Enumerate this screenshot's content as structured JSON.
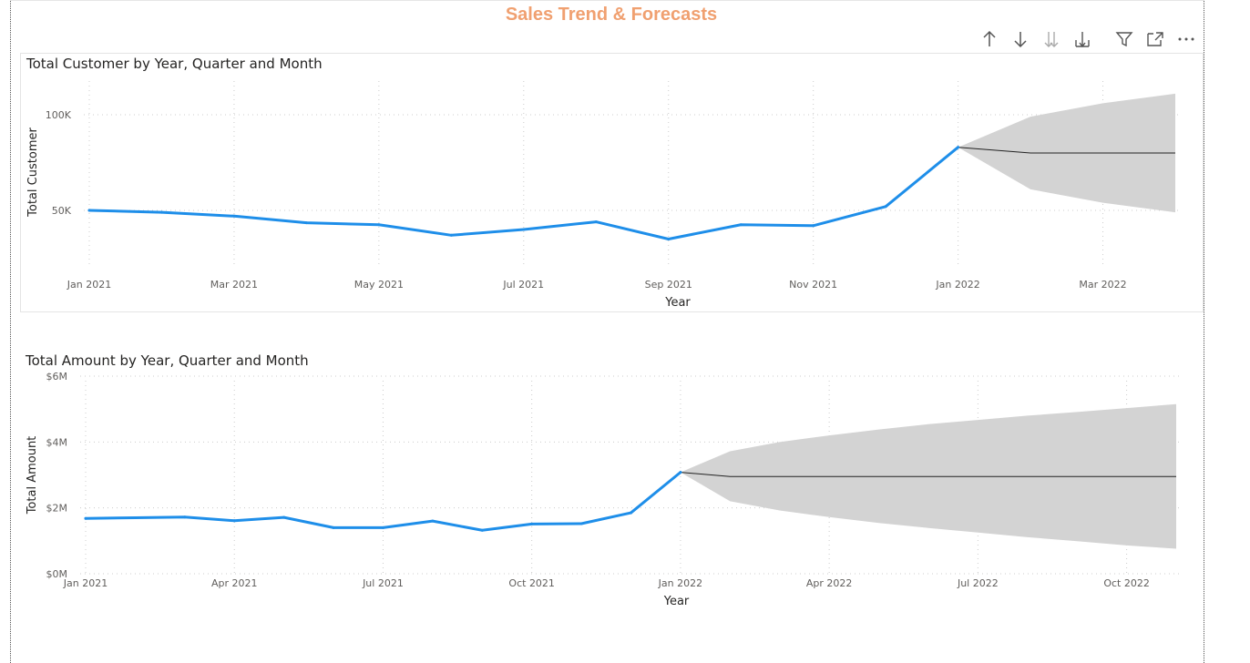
{
  "page": {
    "title": "Sales Trend & Forecasts"
  },
  "toolbar": {
    "icons": [
      "arrow-up-icon",
      "arrow-down-icon",
      "double-arrow-down-icon",
      "expand-hierarchy-icon",
      "filter-icon",
      "focus-mode-icon",
      "more-options-icon"
    ]
  },
  "colors": {
    "title": "#f0a070",
    "series": "#1e8ee9",
    "forecast": "#222222",
    "confidence_band": "#d3d3d3",
    "grid": "#cccccc"
  },
  "chart_data": [
    {
      "type": "line",
      "title": "Total Customer by Year, Quarter and Month",
      "xlabel": "Year",
      "ylabel": "Total Customer",
      "x_ticks": [
        "Jan 2021",
        "Mar 2021",
        "May 2021",
        "Jul 2021",
        "Sep 2021",
        "Nov 2021",
        "Jan 2022",
        "Mar 2022"
      ],
      "y_ticks": [
        "100K",
        "50K"
      ],
      "x_range": [
        "2021-01",
        "2022-04"
      ],
      "y_range": [
        20000,
        120000
      ],
      "grid": true,
      "series": [
        {
          "kind": "actual",
          "x": [
            "2021-01",
            "2021-02",
            "2021-03",
            "2021-04",
            "2021-05",
            "2021-06",
            "2021-07",
            "2021-08",
            "2021-09",
            "2021-10",
            "2021-11",
            "2021-12",
            "2022-01"
          ],
          "values": [
            50000,
            49000,
            47000,
            43500,
            42500,
            37000,
            40000,
            44000,
            35000,
            42500,
            42000,
            52000,
            83000
          ]
        },
        {
          "kind": "forecast",
          "x": [
            "2022-01",
            "2022-02",
            "2022-03",
            "2022-04"
          ],
          "values": [
            83000,
            80000,
            80000,
            80000
          ],
          "upper": [
            83000,
            99000,
            106000,
            111000
          ],
          "lower": [
            83000,
            61000,
            54000,
            49000
          ]
        }
      ]
    },
    {
      "type": "line",
      "title": "Total Amount by Year, Quarter and Month",
      "xlabel": "Year",
      "ylabel": "Total Amount",
      "x_ticks": [
        "Jan 2021",
        "Apr 2021",
        "Jul 2021",
        "Oct 2021",
        "Jan 2022",
        "Apr 2022",
        "Jul 2022",
        "Oct 2022"
      ],
      "y_ticks": [
        "$6M",
        "$4M",
        "$2M",
        "$0M"
      ],
      "x_range": [
        "2021-01",
        "2022-11"
      ],
      "y_range": [
        0,
        6000000
      ],
      "grid": true,
      "series": [
        {
          "kind": "actual",
          "x": [
            "2021-01",
            "2021-02",
            "2021-03",
            "2021-04",
            "2021-05",
            "2021-06",
            "2021-07",
            "2021-08",
            "2021-09",
            "2021-10",
            "2021-11",
            "2021-12",
            "2022-01"
          ],
          "values": [
            1680000,
            1700000,
            1720000,
            1610000,
            1710000,
            1400000,
            1400000,
            1600000,
            1320000,
            1510000,
            1520000,
            1850000,
            3080000
          ]
        },
        {
          "kind": "forecast",
          "x": [
            "2022-01",
            "2022-02",
            "2022-03",
            "2022-04",
            "2022-05",
            "2022-06",
            "2022-07",
            "2022-08",
            "2022-09",
            "2022-10",
            "2022-11"
          ],
          "values": [
            3080000,
            2950000,
            2950000,
            2950000,
            2950000,
            2950000,
            2950000,
            2950000,
            2950000,
            2950000,
            2950000
          ],
          "upper": [
            3080000,
            3720000,
            4000000,
            4200000,
            4380000,
            4540000,
            4670000,
            4800000,
            4910000,
            5030000,
            5150000
          ],
          "lower": [
            3080000,
            2200000,
            1920000,
            1720000,
            1540000,
            1390000,
            1250000,
            1110000,
            990000,
            860000,
            760000
          ]
        }
      ]
    }
  ]
}
